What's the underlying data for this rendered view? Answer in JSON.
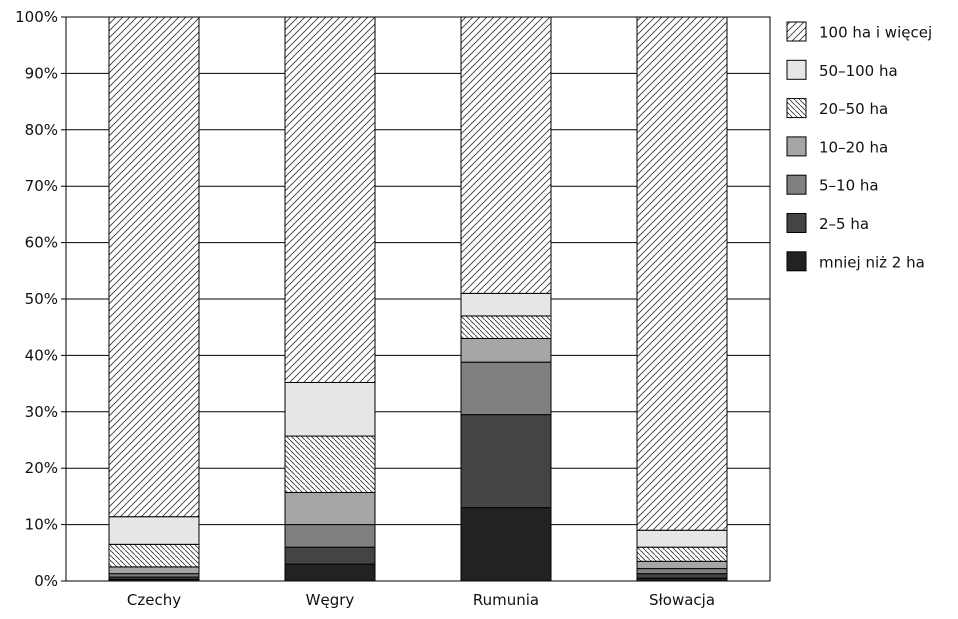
{
  "chart_data": {
    "type": "bar",
    "stacked": true,
    "percent": true,
    "categories": [
      "Czechy",
      "Węgry",
      "Rumunia",
      "Słowacja"
    ],
    "ylim": [
      0,
      100
    ],
    "yticks": [
      "0%",
      "10%",
      "20%",
      "30%",
      "40%",
      "50%",
      "60%",
      "70%",
      "80%",
      "90%",
      "100%"
    ],
    "grid": true,
    "legend_position": "right",
    "series": [
      {
        "name": "mniej niż 2 ha",
        "values": [
          0.3,
          3.0,
          13.0,
          0.5
        ],
        "fill": "#222222",
        "pattern": "solid"
      },
      {
        "name": "2–5 ha",
        "values": [
          0.4,
          3.0,
          16.5,
          0.8
        ],
        "fill": "#444444",
        "pattern": "solid"
      },
      {
        "name": "5–10 ha",
        "values": [
          0.6,
          4.0,
          9.3,
          0.9
        ],
        "fill": "#808080",
        "pattern": "solid"
      },
      {
        "name": "10–20 ha",
        "values": [
          1.2,
          5.7,
          4.2,
          1.3
        ],
        "fill": "#a6a6a6",
        "pattern": "solid"
      },
      {
        "name": "20–50 ha",
        "values": [
          4.0,
          10.0,
          4.0,
          2.5
        ],
        "fill": "#ffffff",
        "pattern": "dense-hatch"
      },
      {
        "name": "50–100 ha",
        "values": [
          4.9,
          9.5,
          4.0,
          3.0
        ],
        "fill": "#e6e6e6",
        "pattern": "solid"
      },
      {
        "name": "100 ha i więcej",
        "values": [
          88.6,
          64.8,
          49.0,
          91.0
        ],
        "fill": "#ffffff",
        "pattern": "sparse-hatch"
      }
    ],
    "legend_order": [
      6,
      5,
      4,
      3,
      2,
      1,
      0
    ]
  }
}
